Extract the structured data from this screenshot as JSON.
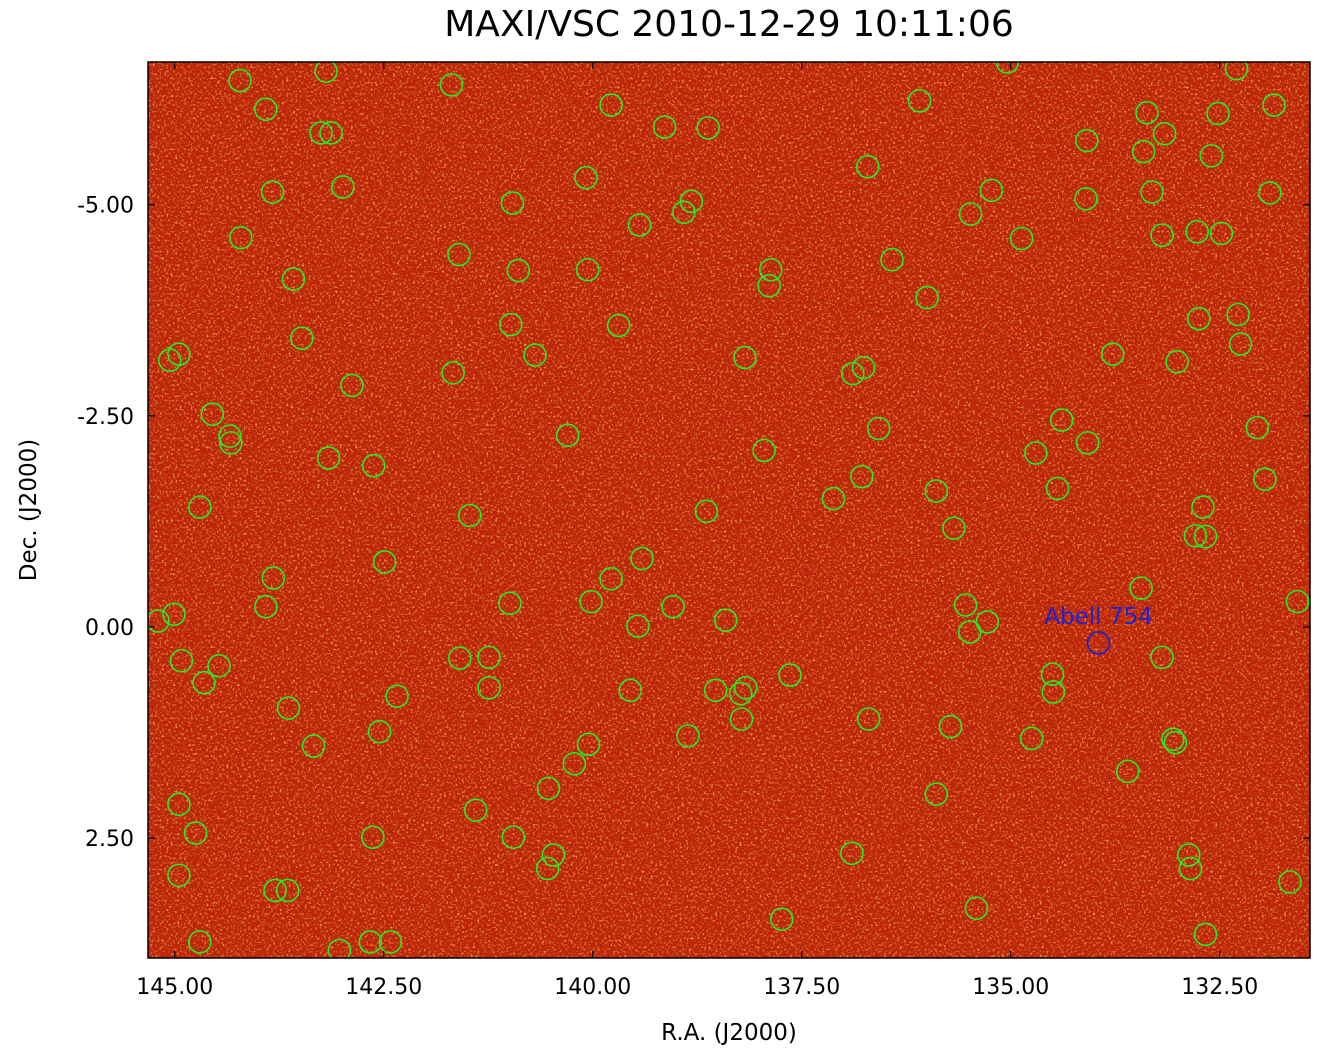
{
  "chart_data": {
    "type": "scatter",
    "title": "MAXI/VSC 2010-12-29 10:11:06",
    "x_label": "R.A. (J2000)",
    "y_label": "Dec. (J2000)",
    "xlim": [
      145.32,
      131.42
    ],
    "ylim": [
      -6.69,
      3.92
    ],
    "xticks": [
      {
        "value": 145,
        "label": "145.00"
      },
      {
        "value": 142.5,
        "label": "142.50"
      },
      {
        "value": 140,
        "label": "140.00"
      },
      {
        "value": 137.5,
        "label": "137.50"
      },
      {
        "value": 135,
        "label": "135.00"
      },
      {
        "value": 132.5,
        "label": "132.50"
      }
    ],
    "yticks": [
      {
        "value": -5,
        "label": "-5.00"
      },
      {
        "value": -2.5,
        "label": "-2.50"
      },
      {
        "value": 0,
        "label": "0.00"
      },
      {
        "value": 2.5,
        "label": "2.50"
      }
    ],
    "series": [
      {
        "color": "#22ee22",
        "x": [
          144.22,
          143.19,
          141.69,
          143.91,
          139.78,
          139.14,
          138.62,
          143.25,
          143.13,
          136.09,
          135.04,
          132.3,
          131.85,
          133.37,
          132.52,
          133.16,
          134.09,
          133.41,
          132.6,
          136.71,
          140.08,
          143.83,
          142.99,
          140.96,
          138.82,
          138.91,
          139.44,
          135.48,
          135.23,
          133.31,
          134.1,
          131.9,
          144.21,
          134.87,
          133.19,
          132.77,
          132.48,
          141.6,
          140.89,
          140.06,
          137.87,
          137.89,
          136.42,
          143.58,
          136.0,
          140.98,
          139.69,
          143.48,
          132.75,
          132.28,
          132.25,
          145.06,
          144.95,
          140.69,
          138.18,
          136.89,
          136.76,
          133.78,
          133.01,
          141.67,
          142.88,
          144.55,
          144.34,
          144.33,
          140.3,
          136.58,
          134.39,
          134.08,
          132.05,
          137.95,
          134.7,
          143.16,
          142.62,
          136.78,
          131.96,
          137.12,
          135.89,
          134.44,
          144.7,
          141.47,
          138.64,
          132.7,
          135.68,
          132.79,
          132.67,
          142.49,
          139.41,
          143.82,
          139.78,
          133.44,
          143.91,
          140.99,
          140.02,
          139.04,
          135.54,
          131.57,
          145.2,
          145.01,
          139.46,
          138.41,
          135.49,
          135.28,
          144.92,
          144.47,
          141.59,
          141.24,
          133.19,
          144.65,
          141.24,
          139.55,
          138.53,
          138.17,
          138.23,
          137.64,
          134.5,
          134.49,
          142.34,
          143.64,
          142.55,
          138.22,
          136.7,
          135.72,
          138.86,
          134.75,
          133.06,
          133.03,
          143.34,
          140.05,
          140.22,
          133.6,
          140.53,
          135.89,
          144.95,
          141.4,
          144.75,
          142.63,
          140.95,
          140.47,
          140.54,
          136.9,
          132.87,
          132.85,
          144.95,
          143.8,
          143.65,
          131.66,
          135.41,
          137.74,
          132.67,
          144.7,
          143.03,
          142.66,
          142.42
        ],
        "values": [
          -6.47,
          -6.58,
          -6.42,
          -6.13,
          -6.18,
          -5.92,
          -5.91,
          -5.85,
          -5.85,
          -6.23,
          -6.69,
          -6.61,
          -6.18,
          -6.09,
          -6.08,
          -5.84,
          -5.76,
          -5.63,
          -5.58,
          -5.45,
          -5.32,
          -5.15,
          -5.21,
          -5.02,
          -5.04,
          -4.91,
          -4.76,
          -4.89,
          -5.17,
          -5.15,
          -5.07,
          -5.14,
          -4.61,
          -4.6,
          -4.64,
          -4.68,
          -4.66,
          -4.41,
          -4.22,
          -4.23,
          -4.23,
          -4.04,
          -4.35,
          -4.12,
          -3.9,
          -3.58,
          -3.57,
          -3.42,
          -3.65,
          -3.7,
          -3.35,
          -3.16,
          -3.23,
          -3.22,
          -3.19,
          -3.0,
          -3.07,
          -3.23,
          -3.14,
          -3.01,
          -2.86,
          -2.52,
          -2.26,
          -2.18,
          -2.27,
          -2.35,
          -2.45,
          -2.18,
          -2.36,
          -2.09,
          -2.06,
          -2.0,
          -1.91,
          -1.78,
          -1.75,
          -1.52,
          -1.61,
          -1.64,
          -1.42,
          -1.32,
          -1.37,
          -1.42,
          -1.17,
          -1.08,
          -1.07,
          -0.77,
          -0.81,
          -0.58,
          -0.57,
          -0.46,
          -0.24,
          -0.28,
          -0.3,
          -0.24,
          -0.26,
          -0.3,
          -0.07,
          -0.15,
          -0.01,
          -0.08,
          0.06,
          -0.06,
          0.4,
          0.46,
          0.37,
          0.36,
          0.36,
          0.66,
          0.72,
          0.75,
          0.75,
          0.72,
          0.79,
          0.57,
          0.56,
          0.77,
          0.82,
          0.96,
          1.24,
          1.09,
          1.09,
          1.18,
          1.29,
          1.32,
          1.33,
          1.37,
          1.41,
          1.39,
          1.62,
          1.71,
          1.91,
          1.98,
          2.1,
          2.17,
          2.44,
          2.49,
          2.49,
          2.7,
          2.86,
          2.68,
          2.7,
          2.86,
          2.94,
          3.12,
          3.12,
          3.02,
          3.33,
          3.46,
          3.64,
          3.73,
          3.83,
          3.73,
          3.73
        ]
      }
    ],
    "annotations": [
      {
        "text": "Abell 754",
        "x": 133.95,
        "y": 0.19,
        "color": "#2222cc"
      }
    ]
  }
}
